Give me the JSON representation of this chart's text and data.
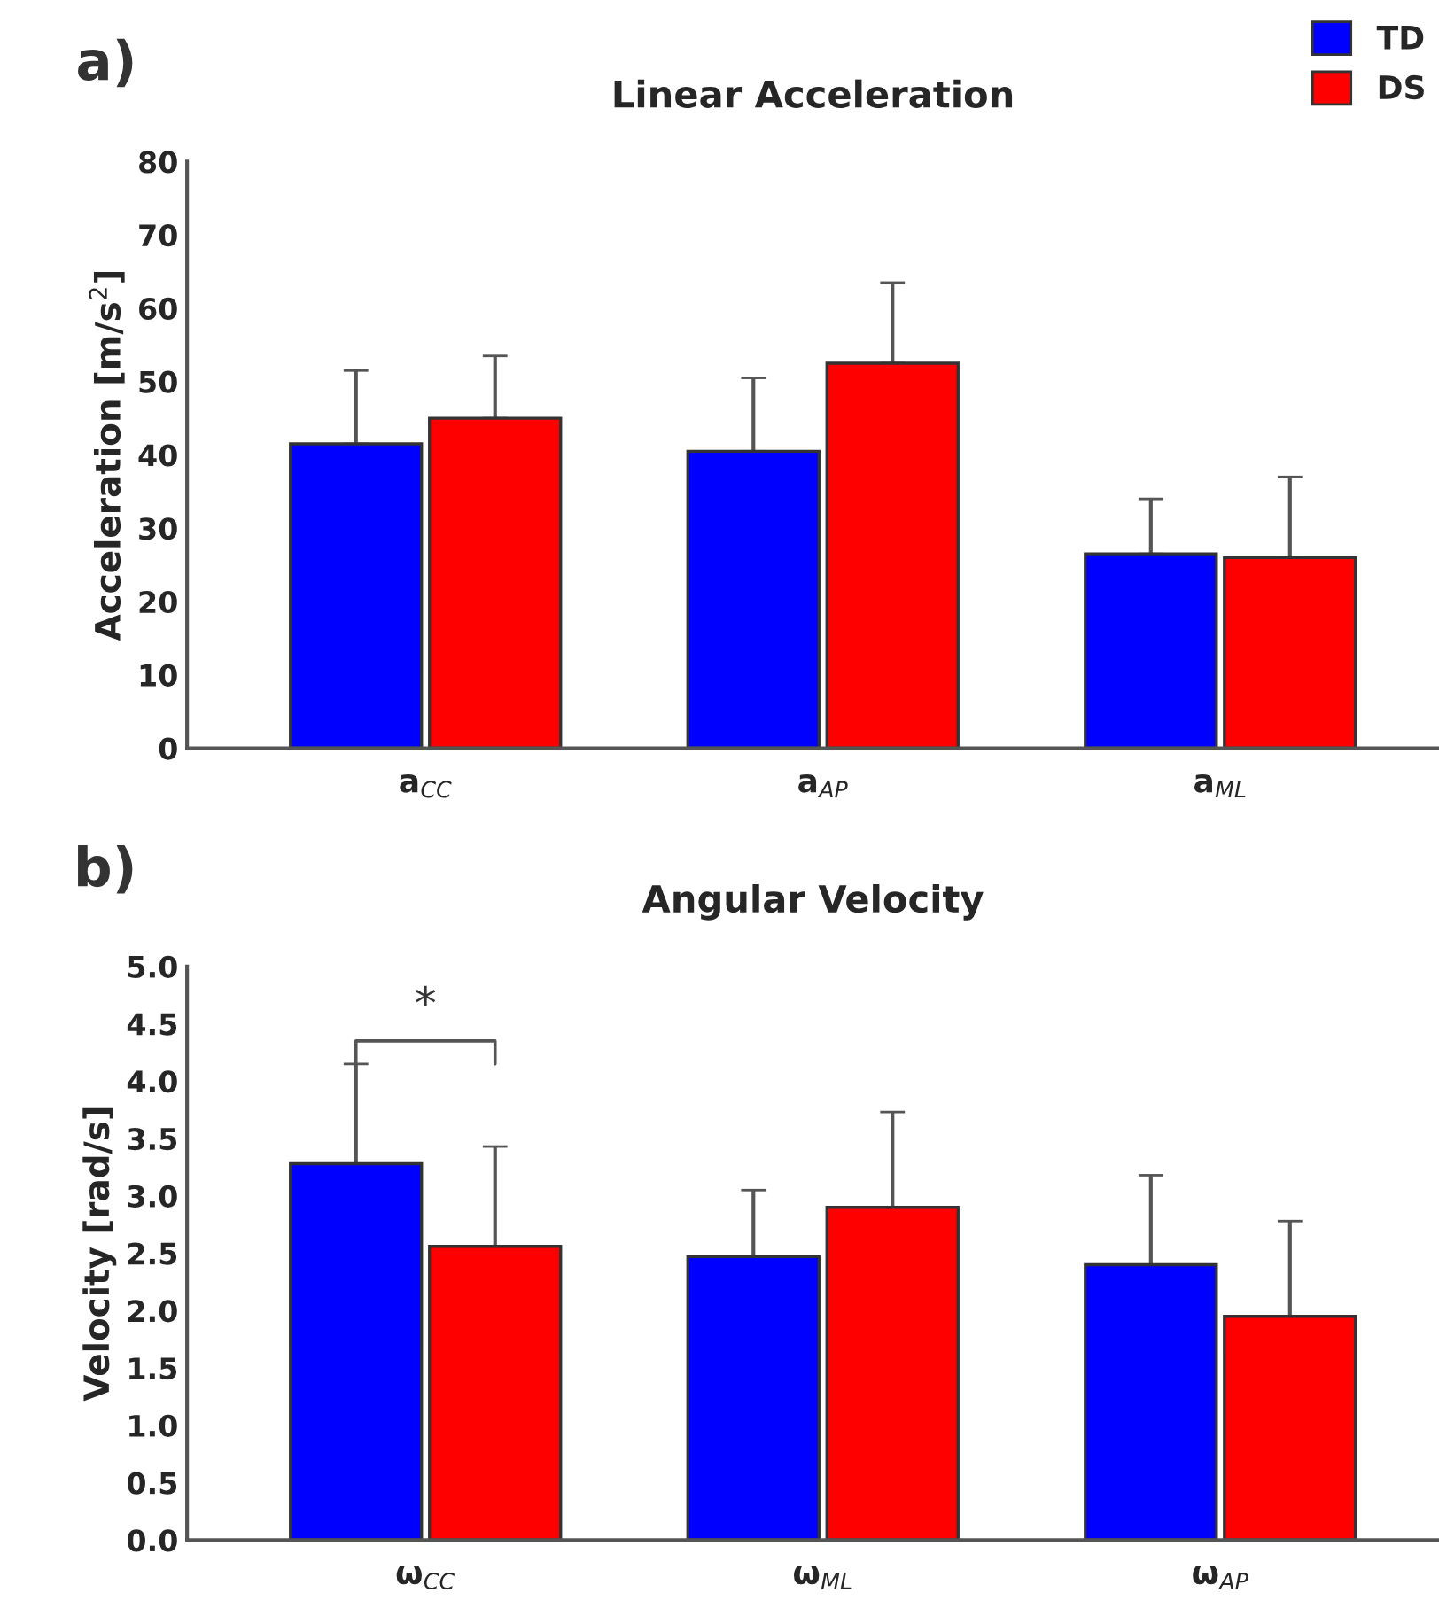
{
  "chart_data": [
    {
      "type": "bar",
      "title": "Linear Acceleration",
      "ylabel": "Acceleration [m/s$^{2}$]",
      "annotations": [
        "a)"
      ],
      "categories": [
        "a$_{CC}$",
        "a$_{AP}$",
        "a$_{ML}$"
      ],
      "series": [
        {
          "name": "TD",
          "color": "#0000ff",
          "values": [
            41.5,
            40.5,
            26.5
          ],
          "errors": [
            [
              41.5,
              51.5
            ],
            [
              40.5,
              50.5
            ],
            [
              26.5,
              34
            ]
          ]
        },
        {
          "name": "DS",
          "color": "#ff0000",
          "values": [
            45,
            52.5,
            26
          ],
          "errors": [
            [
              45,
              53.5
            ],
            [
              52.5,
              63.5
            ],
            [
              26,
              37
            ]
          ]
        }
      ],
      "ylim": [
        0,
        80
      ],
      "yticks": [
        0,
        10,
        20,
        30,
        40,
        50,
        60,
        70,
        80
      ],
      "grid": false,
      "legend": "top right"
    },
    {
      "type": "bar",
      "title": "Angular Velocity",
      "ylabel": "Velocity [rad/s]",
      "annotations": [
        "b)",
        "*"
      ],
      "categories": [
        "ω$_{CC}$",
        "ω$_{ML}$",
        "ω$_{AP}$"
      ],
      "series": [
        {
          "color": "#0000ff",
          "values": [
            3.28,
            2.47,
            2.4
          ],
          "errors": [
            [
              3.28,
              4.15
            ],
            [
              2.47,
              3.05
            ],
            [
              2.4,
              3.18
            ]
          ]
        },
        {
          "color": "#ff0000",
          "values": [
            2.56,
            2.9,
            1.95
          ],
          "errors": [
            [
              2.56,
              3.43
            ],
            [
              2.9,
              3.73
            ],
            [
              1.95,
              2.78
            ]
          ]
        }
      ],
      "ylim": [
        0,
        5.0
      ],
      "yticks": [
        {
          "value": 0,
          "label": "0.0"
        },
        0.5,
        {
          "value": 1,
          "label": "1.0"
        },
        1.5,
        {
          "value": 2,
          "label": "2.0"
        },
        2.5,
        {
          "value": 3,
          "label": "3.0"
        },
        3.5,
        {
          "value": 4,
          "label": "4.0"
        },
        4.5,
        {
          "value": 5,
          "label": "5.0"
        }
      ],
      "grid": false,
      "legend": false
    }
  ]
}
